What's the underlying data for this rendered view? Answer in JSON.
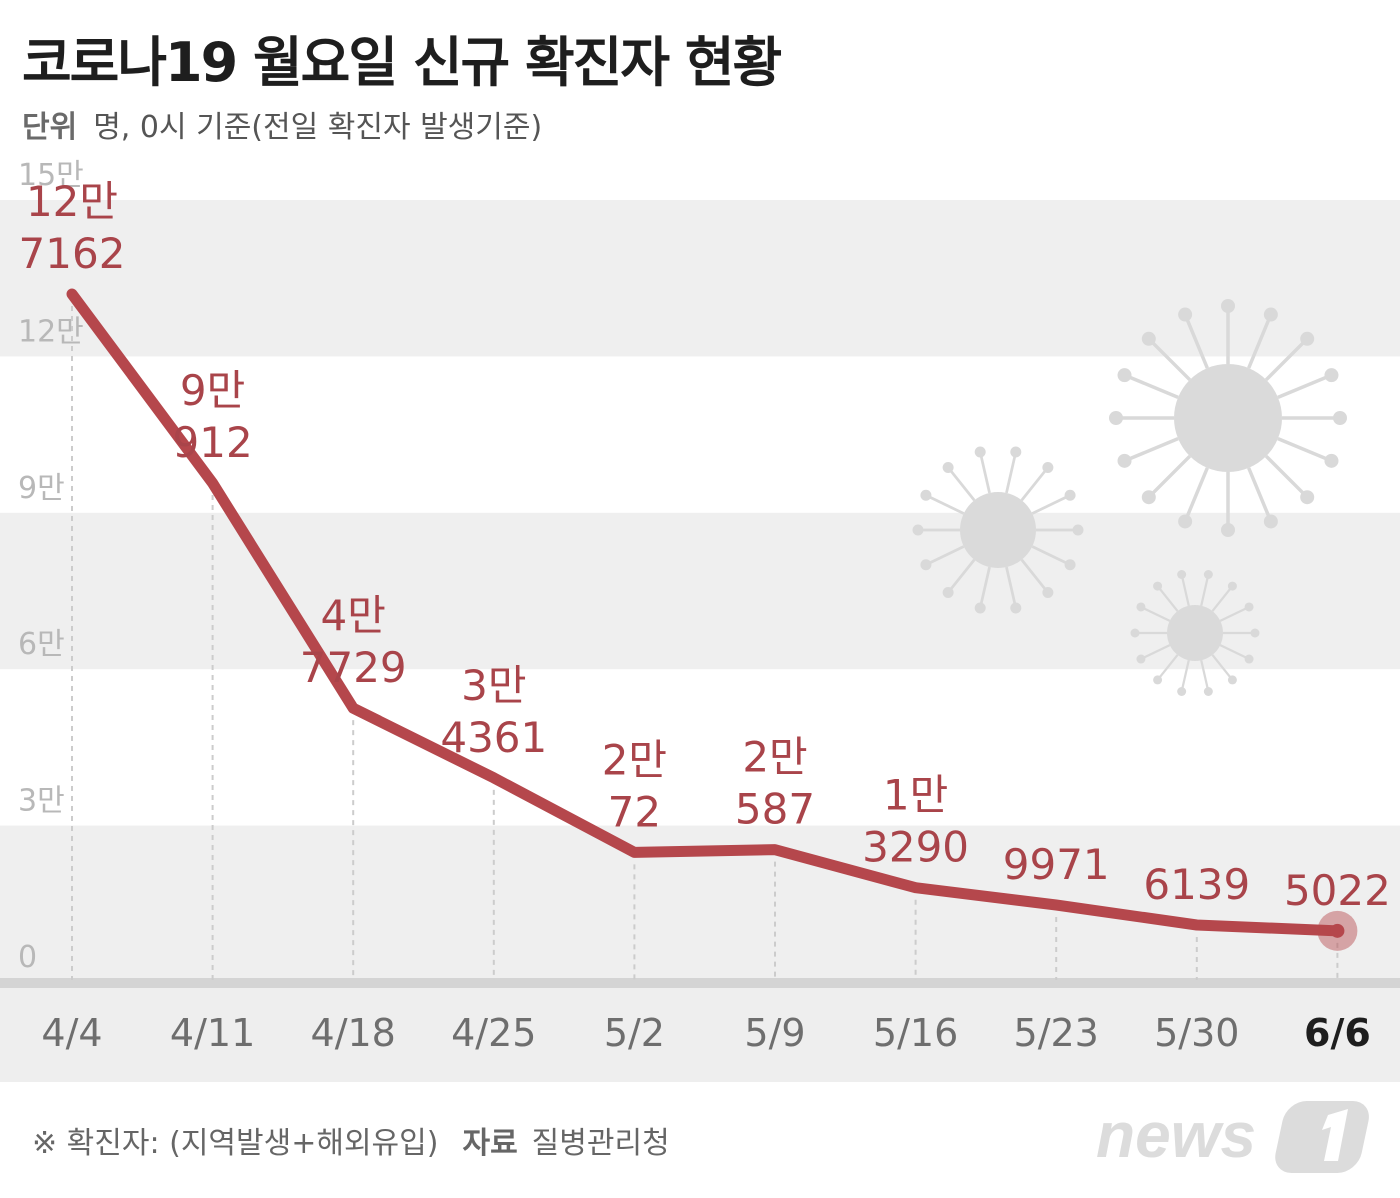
{
  "header": {
    "title": "코로나19 월요일 신규 확진자 현황",
    "unit_label": "단위",
    "unit_text": "명, 0시 기준(전일 확진자 발생기준)"
  },
  "chart_data": {
    "type": "line",
    "title": "코로나19 월요일 신규 확진자 현황",
    "xlabel": "",
    "ylabel": "명",
    "ylim": [
      0,
      150000
    ],
    "y_ticks": [
      {
        "value": 0,
        "label": "0"
      },
      {
        "value": 30000,
        "label": "3만"
      },
      {
        "value": 60000,
        "label": "6만"
      },
      {
        "value": 90000,
        "label": "9만"
      },
      {
        "value": 120000,
        "label": "12만"
      },
      {
        "value": 150000,
        "label": "15만"
      }
    ],
    "categories": [
      "4/4",
      "4/11",
      "4/18",
      "4/25",
      "5/2",
      "5/9",
      "5/16",
      "5/23",
      "5/30",
      "6/6"
    ],
    "values": [
      127162,
      90912,
      47729,
      34361,
      20072,
      20587,
      13290,
      9971,
      6139,
      5022
    ],
    "data_labels": [
      [
        "12만",
        "7162"
      ],
      [
        "9만",
        "912"
      ],
      [
        "4만",
        "7729"
      ],
      [
        "3만",
        "4361"
      ],
      [
        "2만",
        "72"
      ],
      [
        "2만",
        "587"
      ],
      [
        "1만",
        "3290"
      ],
      [
        "9971"
      ],
      [
        "6139"
      ],
      [
        "5022"
      ]
    ],
    "highlight_category": "6/6",
    "colors": {
      "line": "#b5474c",
      "label": "#a9444a",
      "band": "#efefef",
      "tick": "#b8b8b8",
      "axis_band": "#eeeeee"
    }
  },
  "footer": {
    "note": "※ 확진자: (지역발생+해외유입)",
    "source_label": "자료",
    "source_value": "질병관리청",
    "logo_text": "news"
  }
}
